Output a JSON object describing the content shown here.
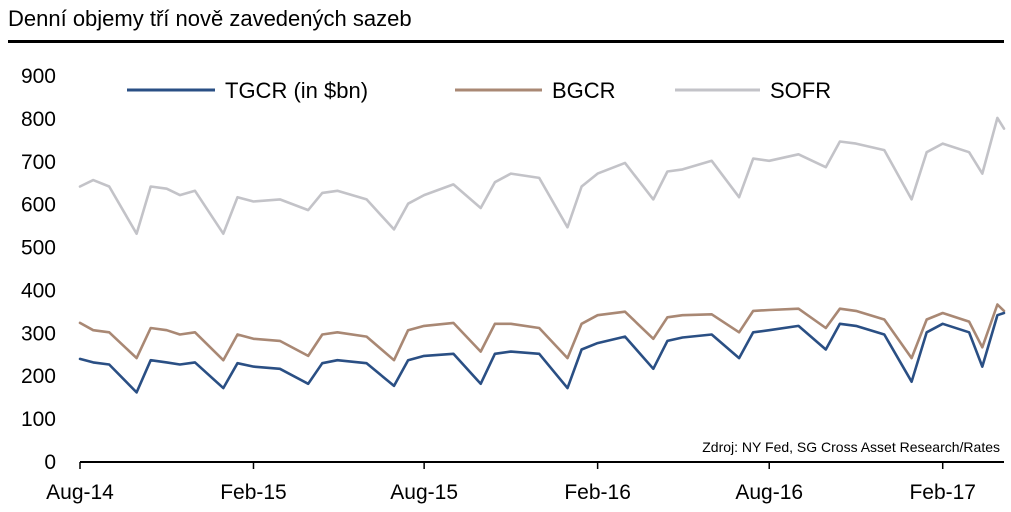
{
  "header": {
    "title": "Denní objemy tří nově zavedených sazeb"
  },
  "chart_data": {
    "type": "line",
    "title": "Denní objemy tří nově zavedených sazeb",
    "source_note": "Zdroj: NY Fed, SG Cross Asset Research/Rates",
    "xlabel": "",
    "ylabel": "",
    "ylim": [
      0,
      900
    ],
    "yticks": [
      0,
      100,
      200,
      300,
      400,
      500,
      600,
      700,
      800,
      900
    ],
    "xlim": [
      "2014-08-01",
      "2017-04-07"
    ],
    "xtick_labels": [
      "Aug-14",
      "Feb-15",
      "Aug-15",
      "Feb-16",
      "Aug-16",
      "Feb-17"
    ],
    "xtick_dates": [
      "2014-08-01",
      "2015-02-01",
      "2015-08-01",
      "2016-02-01",
      "2016-08-01",
      "2017-02-01"
    ],
    "grid": false,
    "legend_position": "top",
    "series": [
      {
        "name": "TGCR (in $bn)",
        "color": "#2a4f84",
        "points": [
          [
            "2014-08-01",
            238
          ],
          [
            "2014-08-15",
            230
          ],
          [
            "2014-09-01",
            225
          ],
          [
            "2014-09-30",
            160
          ],
          [
            "2014-10-15",
            235
          ],
          [
            "2014-11-01",
            230
          ],
          [
            "2014-11-15",
            225
          ],
          [
            "2014-12-01",
            230
          ],
          [
            "2014-12-31",
            170
          ],
          [
            "2015-01-15",
            228
          ],
          [
            "2015-02-01",
            220
          ],
          [
            "2015-03-01",
            215
          ],
          [
            "2015-03-31",
            180
          ],
          [
            "2015-04-15",
            228
          ],
          [
            "2015-05-01",
            235
          ],
          [
            "2015-06-01",
            228
          ],
          [
            "2015-06-30",
            175
          ],
          [
            "2015-07-15",
            235
          ],
          [
            "2015-08-01",
            245
          ],
          [
            "2015-09-01",
            250
          ],
          [
            "2015-09-30",
            180
          ],
          [
            "2015-10-15",
            250
          ],
          [
            "2015-11-01",
            255
          ],
          [
            "2015-12-01",
            250
          ],
          [
            "2015-12-31",
            170
          ],
          [
            "2016-01-15",
            260
          ],
          [
            "2016-02-01",
            275
          ],
          [
            "2016-03-01",
            290
          ],
          [
            "2016-03-31",
            215
          ],
          [
            "2016-04-15",
            280
          ],
          [
            "2016-05-01",
            288
          ],
          [
            "2016-06-01",
            295
          ],
          [
            "2016-06-30",
            240
          ],
          [
            "2016-07-15",
            300
          ],
          [
            "2016-08-01",
            305
          ],
          [
            "2016-09-01",
            315
          ],
          [
            "2016-09-30",
            260
          ],
          [
            "2016-10-15",
            320
          ],
          [
            "2016-11-01",
            315
          ],
          [
            "2016-12-01",
            295
          ],
          [
            "2016-12-30",
            185
          ],
          [
            "2017-01-15",
            300
          ],
          [
            "2017-02-01",
            320
          ],
          [
            "2017-03-01",
            300
          ],
          [
            "2017-03-15",
            220
          ],
          [
            "2017-03-31",
            340
          ],
          [
            "2017-04-07",
            345
          ]
        ]
      },
      {
        "name": "BGCR",
        "color": "#a98874",
        "points": [
          [
            "2014-08-01",
            322
          ],
          [
            "2014-08-15",
            305
          ],
          [
            "2014-09-01",
            300
          ],
          [
            "2014-09-30",
            240
          ],
          [
            "2014-10-15",
            310
          ],
          [
            "2014-11-01",
            305
          ],
          [
            "2014-11-15",
            295
          ],
          [
            "2014-12-01",
            300
          ],
          [
            "2014-12-31",
            235
          ],
          [
            "2015-01-15",
            295
          ],
          [
            "2015-02-01",
            285
          ],
          [
            "2015-03-01",
            280
          ],
          [
            "2015-03-31",
            245
          ],
          [
            "2015-04-15",
            295
          ],
          [
            "2015-05-01",
            300
          ],
          [
            "2015-06-01",
            290
          ],
          [
            "2015-06-30",
            235
          ],
          [
            "2015-07-15",
            305
          ],
          [
            "2015-08-01",
            315
          ],
          [
            "2015-09-01",
            322
          ],
          [
            "2015-09-30",
            255
          ],
          [
            "2015-10-15",
            320
          ],
          [
            "2015-11-01",
            320
          ],
          [
            "2015-12-01",
            310
          ],
          [
            "2015-12-31",
            240
          ],
          [
            "2016-01-15",
            320
          ],
          [
            "2016-02-01",
            340
          ],
          [
            "2016-03-01",
            348
          ],
          [
            "2016-03-31",
            285
          ],
          [
            "2016-04-15",
            335
          ],
          [
            "2016-05-01",
            340
          ],
          [
            "2016-06-01",
            342
          ],
          [
            "2016-06-30",
            300
          ],
          [
            "2016-07-15",
            350
          ],
          [
            "2016-08-01",
            352
          ],
          [
            "2016-09-01",
            355
          ],
          [
            "2016-09-30",
            310
          ],
          [
            "2016-10-15",
            355
          ],
          [
            "2016-11-01",
            350
          ],
          [
            "2016-12-01",
            330
          ],
          [
            "2016-12-30",
            240
          ],
          [
            "2017-01-15",
            330
          ],
          [
            "2017-02-01",
            345
          ],
          [
            "2017-03-01",
            325
          ],
          [
            "2017-03-15",
            265
          ],
          [
            "2017-03-31",
            365
          ],
          [
            "2017-04-07",
            350
          ]
        ]
      },
      {
        "name": "SOFR",
        "color": "#c3c3c8",
        "points": [
          [
            "2014-08-01",
            640
          ],
          [
            "2014-08-15",
            655
          ],
          [
            "2014-09-01",
            640
          ],
          [
            "2014-09-30",
            530
          ],
          [
            "2014-10-15",
            640
          ],
          [
            "2014-11-01",
            635
          ],
          [
            "2014-11-15",
            620
          ],
          [
            "2014-12-01",
            630
          ],
          [
            "2014-12-31",
            530
          ],
          [
            "2015-01-15",
            615
          ],
          [
            "2015-02-01",
            605
          ],
          [
            "2015-03-01",
            610
          ],
          [
            "2015-03-31",
            585
          ],
          [
            "2015-04-15",
            625
          ],
          [
            "2015-05-01",
            630
          ],
          [
            "2015-06-01",
            610
          ],
          [
            "2015-06-30",
            540
          ],
          [
            "2015-07-15",
            600
          ],
          [
            "2015-08-01",
            620
          ],
          [
            "2015-09-01",
            645
          ],
          [
            "2015-09-30",
            590
          ],
          [
            "2015-10-15",
            650
          ],
          [
            "2015-11-01",
            670
          ],
          [
            "2015-12-01",
            660
          ],
          [
            "2015-12-31",
            545
          ],
          [
            "2016-01-15",
            640
          ],
          [
            "2016-02-01",
            670
          ],
          [
            "2016-03-01",
            695
          ],
          [
            "2016-03-31",
            610
          ],
          [
            "2016-04-15",
            675
          ],
          [
            "2016-05-01",
            680
          ],
          [
            "2016-06-01",
            700
          ],
          [
            "2016-06-30",
            615
          ],
          [
            "2016-07-15",
            705
          ],
          [
            "2016-08-01",
            700
          ],
          [
            "2016-09-01",
            715
          ],
          [
            "2016-09-30",
            685
          ],
          [
            "2016-10-15",
            745
          ],
          [
            "2016-11-01",
            740
          ],
          [
            "2016-12-01",
            725
          ],
          [
            "2016-12-30",
            610
          ],
          [
            "2017-01-15",
            720
          ],
          [
            "2017-02-01",
            740
          ],
          [
            "2017-03-01",
            720
          ],
          [
            "2017-03-15",
            670
          ],
          [
            "2017-03-31",
            800
          ],
          [
            "2017-04-07",
            775
          ]
        ]
      }
    ]
  }
}
